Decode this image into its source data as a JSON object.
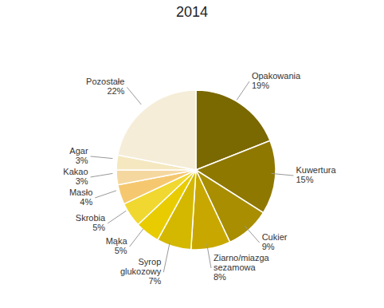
{
  "chart_data": {
    "type": "pie",
    "title": "2014",
    "categories": [
      "Opakowania\n19%",
      "Kuwertura\n15%",
      "Cukier\n9%",
      "Ziarno/miazga\nsezamowa\n8%",
      "Syrop\nglukozowy\n7%",
      "Mąka\n5%",
      "Skrobia\n5%",
      "Masło\n4%",
      "Kakao\n3%",
      "Agar\n3%",
      "Pozostałe\n22%"
    ],
    "values": [
      19,
      15,
      9,
      8,
      7,
      5,
      5,
      4,
      3,
      3,
      22
    ],
    "colors": [
      "#7A6800",
      "#8F7800",
      "#A88E00",
      "#C8A800",
      "#D4B800",
      "#E8CC00",
      "#F0D830",
      "#F5C870",
      "#F5D8A0",
      "#F5E8C0",
      "#F5EDD8"
    ]
  }
}
